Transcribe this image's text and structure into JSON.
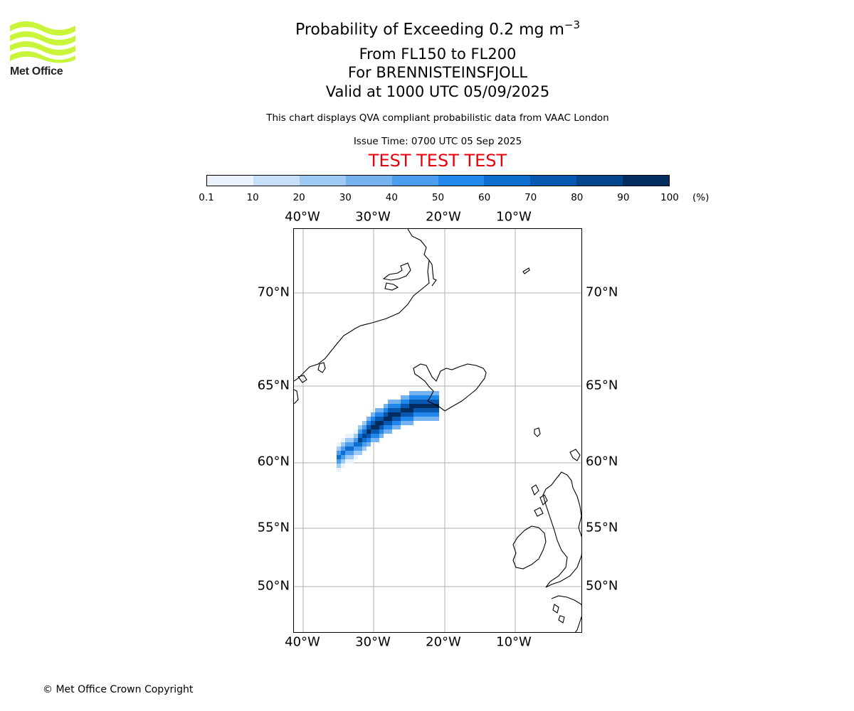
{
  "logo": {
    "text": "Met Office",
    "color": "#c8f53a"
  },
  "header": {
    "title_main": "Probability of Exceeding 0.2 mg m",
    "title_exp": "−3",
    "line2": "From FL150 to FL200",
    "line3": "For BRENNISTEINSFJOLL",
    "line4": "Valid at 1000 UTC 05/09/2025",
    "info": "This chart displays QVA compliant probabilistic data from VAAC London",
    "issue": "Issue Time: 0700 UTC 05 Sep 2025",
    "test": "TEST TEST TEST",
    "test_color": "#e8000b"
  },
  "colorbar": {
    "ticks": [
      "0.1",
      "10",
      "20",
      "30",
      "40",
      "50",
      "60",
      "70",
      "80",
      "90",
      "100"
    ],
    "unit": "(%)",
    "colors": [
      "#eaf3fd",
      "#c5e0f8",
      "#9fcaf3",
      "#74b3ef",
      "#4a9def",
      "#2187ea",
      "#0e6fd0",
      "#0758b0",
      "#04468e",
      "#022d5e"
    ]
  },
  "map": {
    "lon_labels_top": [
      "40°W",
      "30°W",
      "20°W",
      "10°W"
    ],
    "lon_labels_bottom": [
      "40°W",
      "30°W",
      "20°W",
      "10°W"
    ],
    "lat_labels_left": [
      "70°N",
      "65°N",
      "60°N",
      "55°N",
      "50°N"
    ],
    "lat_labels_right": [
      "70°N",
      "65°N",
      "60°N",
      "55°N",
      "50°N"
    ],
    "gridline_color": "#b0b0b0",
    "plume_color_scale": "blues"
  },
  "footer": {
    "copyright": "© Met Office Crown Copyright"
  }
}
